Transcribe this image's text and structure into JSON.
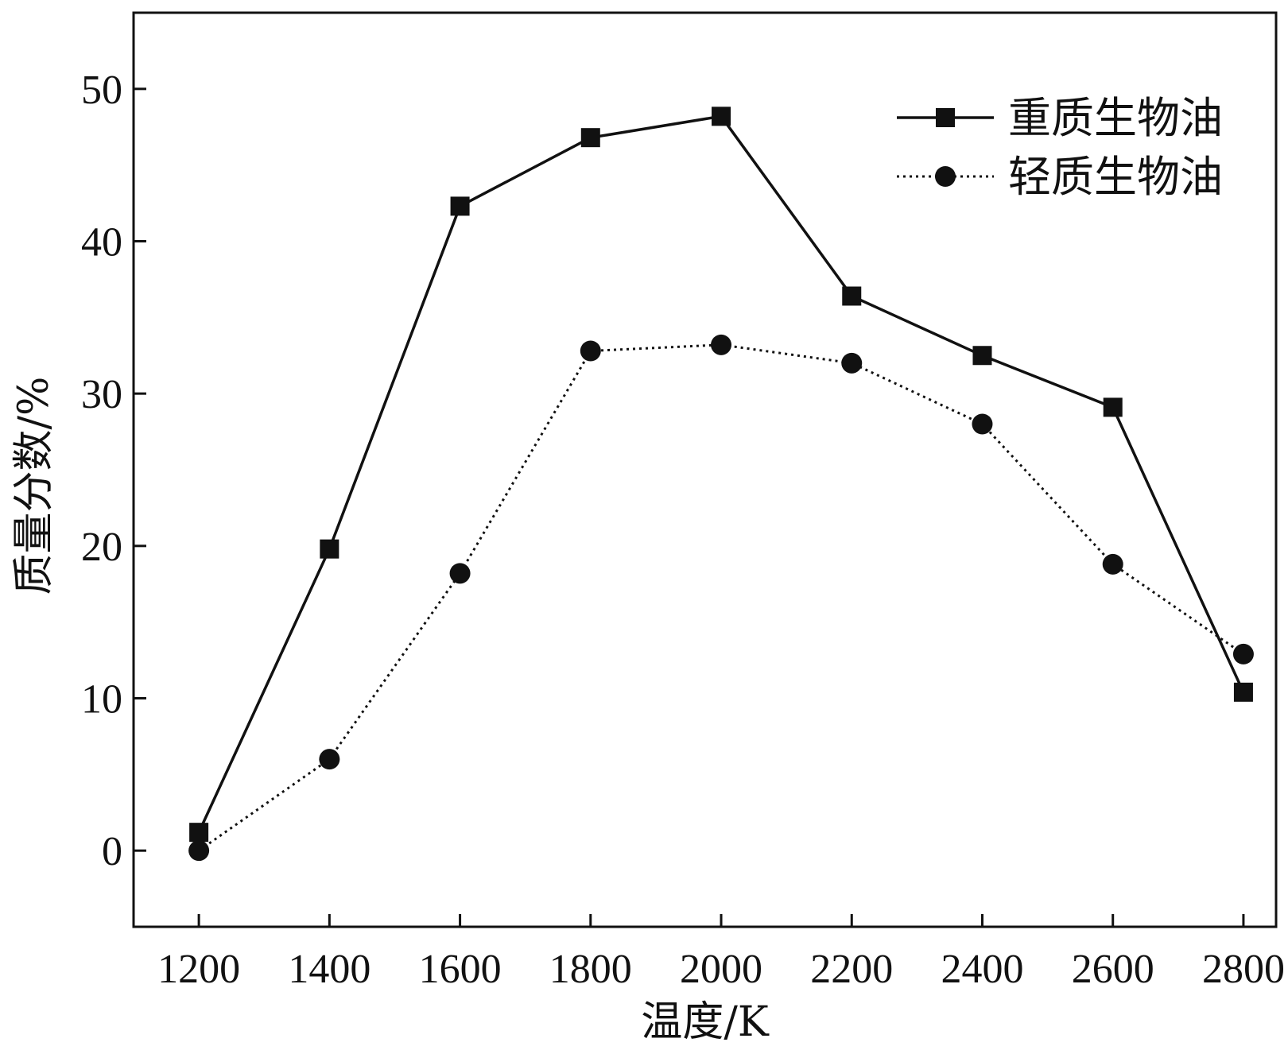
{
  "chart_data": {
    "type": "line",
    "xlabel": "温度/K",
    "ylabel": "质量分数/%",
    "xlim": [
      1100,
      2850
    ],
    "ylim": [
      -5,
      55
    ],
    "x_ticks": [
      1200,
      1400,
      1600,
      1800,
      2000,
      2200,
      2400,
      2600,
      2800
    ],
    "y_ticks": [
      0,
      10,
      20,
      30,
      40,
      50
    ],
    "grid": false,
    "legend_position": "top-right",
    "series": [
      {
        "name": "重质生物油",
        "marker": "square",
        "line_style": "solid",
        "x": [
          1200,
          1400,
          1600,
          1800,
          2000,
          2200,
          2400,
          2600,
          2800
        ],
        "y": [
          1.2,
          19.8,
          42.3,
          46.8,
          48.2,
          36.4,
          32.5,
          29.1,
          10.4
        ]
      },
      {
        "name": "轻质生物油",
        "marker": "circle",
        "line_style": "dotted",
        "x": [
          1200,
          1400,
          1600,
          1800,
          2000,
          2200,
          2400,
          2600,
          2800
        ],
        "y": [
          0.0,
          6.0,
          18.2,
          32.8,
          33.2,
          32.0,
          28.0,
          18.8,
          12.9
        ]
      }
    ]
  }
}
